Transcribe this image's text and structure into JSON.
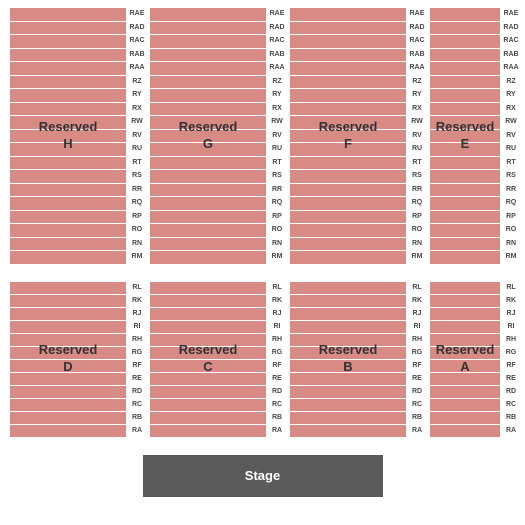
{
  "chart": {
    "type": "seating-map",
    "background_color": "#ffffff",
    "seat_color": "#d88a85",
    "row_label_color": "#4a4a4a",
    "row_label_fontsize": 7,
    "section_label_color": "#333333",
    "section_label_fontsize": 13,
    "stage_bg": "#5a5a5a",
    "stage_fg": "#ffffff",
    "stage_label": "Stage",
    "tiers": [
      {
        "name": "back",
        "rows": [
          "RAE",
          "RAD",
          "RAC",
          "RAB",
          "RAA",
          "RZ",
          "RY",
          "RX",
          "RW",
          "RV",
          "RU",
          "RT",
          "RS",
          "RR",
          "RQ",
          "RP",
          "RO",
          "RN",
          "RM"
        ],
        "sections": [
          {
            "label_line1": "Reserved",
            "label_line2": "H",
            "width": "wide"
          },
          {
            "label_line1": "Reserved",
            "label_line2": "G",
            "width": "wide"
          },
          {
            "label_line1": "Reserved",
            "label_line2": "F",
            "width": "wide"
          },
          {
            "label_line1": "Reserved",
            "label_line2": "E",
            "width": "narrow"
          }
        ]
      },
      {
        "name": "front",
        "rows": [
          "RL",
          "RK",
          "RJ",
          "RI",
          "RH",
          "RG",
          "RF",
          "RE",
          "RD",
          "RC",
          "RB",
          "RA"
        ],
        "sections": [
          {
            "label_line1": "Reserved",
            "label_line2": "D",
            "width": "wide"
          },
          {
            "label_line1": "Reserved",
            "label_line2": "C",
            "width": "wide"
          },
          {
            "label_line1": "Reserved",
            "label_line2": "B",
            "width": "wide"
          },
          {
            "label_line1": "Reserved",
            "label_line2": "A",
            "width": "narrow"
          }
        ]
      }
    ]
  }
}
